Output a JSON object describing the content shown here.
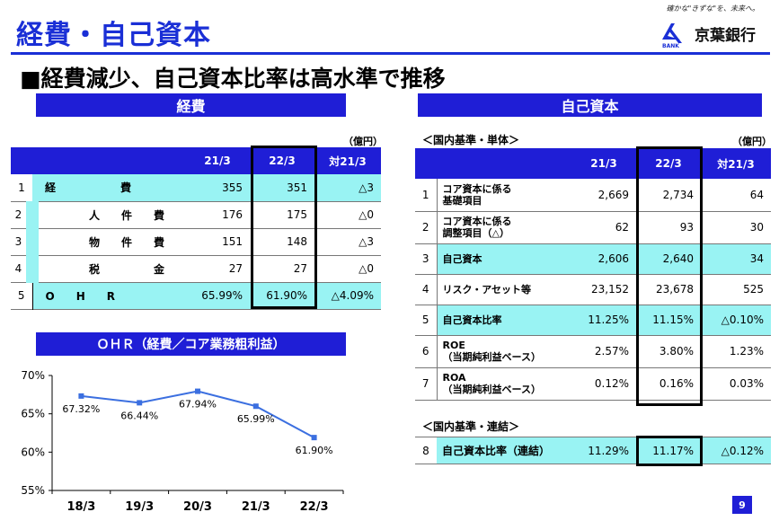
{
  "page_title": "経費・自己資本",
  "tagline": "確かな\"きずな\"を、未来へ。",
  "brand": {
    "name": "京葉銀行",
    "bank_label": "BANK",
    "color": "#1f1ed6"
  },
  "heading": "■経費減少、自己資本比率は高水準で推移",
  "expenses": {
    "band": "経費",
    "unit": "（億円）",
    "columns": [
      "21/3",
      "22/3",
      "対21/3"
    ],
    "rows": [
      {
        "no": "1",
        "label": "経　　　　　　費",
        "v1": "355",
        "v2": "351",
        "diff": "△3"
      },
      {
        "no": "2",
        "label": "人　　件　　費",
        "v1": "176",
        "v2": "175",
        "diff": "△0"
      },
      {
        "no": "3",
        "label": "物　　件　　費",
        "v1": "151",
        "v2": "148",
        "diff": "△3"
      },
      {
        "no": "4",
        "label": "税　　　　　金",
        "v1": "27",
        "v2": "27",
        "diff": "△0"
      },
      {
        "no": "5",
        "label": "O　　H　　R",
        "v1": "65.99%",
        "v2": "61.90%",
        "diff": "△4.09%"
      }
    ]
  },
  "ohr_chart": {
    "band": "ＯＨＲ（経費／コア業務粗利益）"
  },
  "chart_data": {
    "type": "line",
    "title": "ＯＨＲ（経費／コア業務粗利益）",
    "categories": [
      "18/3",
      "19/3",
      "20/3",
      "21/3",
      "22/3"
    ],
    "values": [
      67.32,
      66.44,
      67.94,
      65.99,
      61.9
    ],
    "data_labels": [
      "67.32%",
      "66.44%",
      "67.94%",
      "65.99%",
      "61.90%"
    ],
    "ylim": [
      55,
      70
    ],
    "yticks": [
      "70%",
      "65%",
      "60%",
      "55%"
    ],
    "line_color": "#3b6fe0",
    "grid": false
  },
  "capital": {
    "band": "自己資本",
    "sub1": "＜国内基準・単体＞",
    "unit": "（億円）",
    "columns": [
      "21/3",
      "22/3",
      "対21/3"
    ],
    "rows": [
      {
        "no": "1",
        "label": "コア資本に係る\n基礎項目",
        "v1": "2,669",
        "v2": "2,734",
        "diff": "64"
      },
      {
        "no": "2",
        "label": "コア資本に係る\n調整項目（△）",
        "v1": "62",
        "v2": "93",
        "diff": "30"
      },
      {
        "no": "3",
        "label": "自己資本",
        "v1": "2,606",
        "v2": "2,640",
        "diff": "34"
      },
      {
        "no": "4",
        "label": "リスク・アセット等",
        "v1": "23,152",
        "v2": "23,678",
        "diff": "525"
      },
      {
        "no": "5",
        "label": "自己資本比率",
        "v1": "11.25%",
        "v2": "11.15%",
        "diff": "△0.10%"
      },
      {
        "no": "6",
        "label": "ROE\n（当期純利益ベース）",
        "v1": "2.57%",
        "v2": "3.80%",
        "diff": "1.23%"
      },
      {
        "no": "7",
        "label": "ROA\n（当期純利益ベース）",
        "v1": "0.12%",
        "v2": "0.16%",
        "diff": "0.03%"
      }
    ],
    "sub2": "＜国内基準・連結＞",
    "consolidated": {
      "no": "8",
      "label": "自己資本比率（連結）",
      "v1": "11.29%",
      "v2": "11.17%",
      "diff": "△0.12%"
    }
  },
  "page_number": "9"
}
